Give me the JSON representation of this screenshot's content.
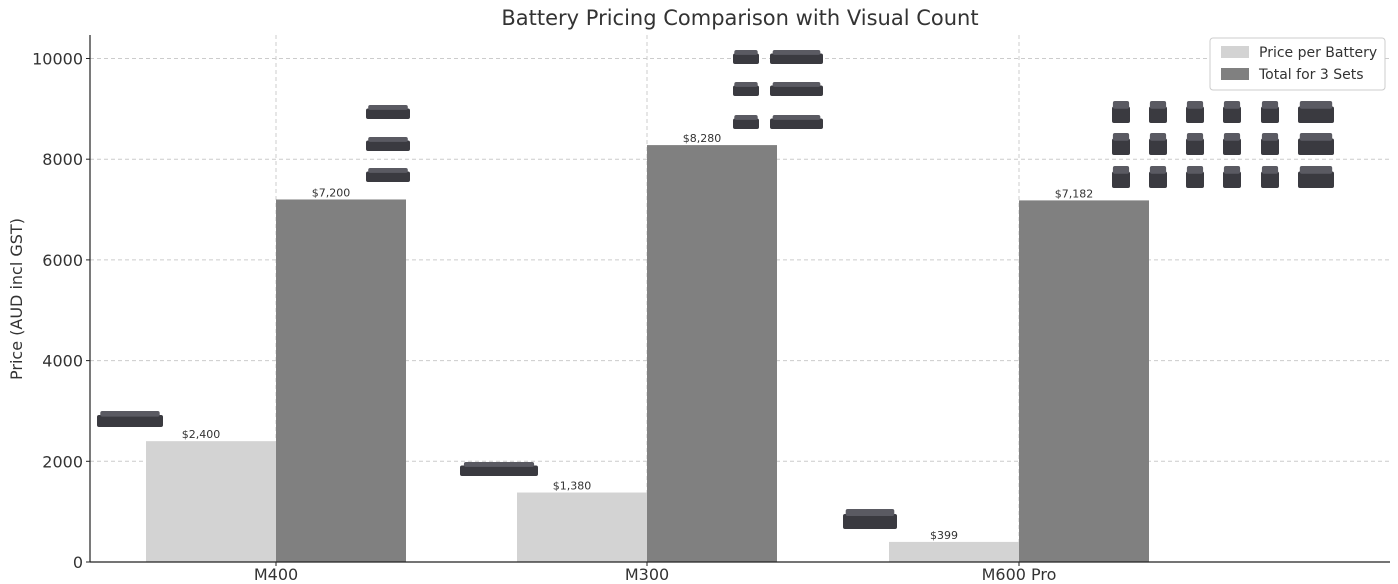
{
  "chart_data": {
    "type": "bar",
    "title": "Battery Pricing Comparison with Visual Count",
    "xlabel": "",
    "ylabel": "Price (AUD incl GST)",
    "categories": [
      "M400",
      "M300",
      "M600 Pro"
    ],
    "series": [
      {
        "name": "Price per Battery",
        "values": [
          2400,
          1380,
          399
        ],
        "color": "#d3d3d3",
        "labels": [
          "$2,400",
          "$1,380",
          "$399"
        ]
      },
      {
        "name": "Total for 3 Sets",
        "values": [
          7200,
          8280,
          7182
        ],
        "color": "#808080",
        "labels": [
          "$7,200",
          "$8,280",
          "$7,182"
        ]
      }
    ],
    "ylim": [
      0,
      10500
    ],
    "yticks": [
      0,
      2000,
      4000,
      6000,
      8000,
      10000
    ],
    "grid": true,
    "legend_position": "top-right",
    "battery_icon_counts": {
      "per_battery": [
        1,
        1,
        1
      ],
      "total": [
        3,
        6,
        18
      ]
    }
  }
}
